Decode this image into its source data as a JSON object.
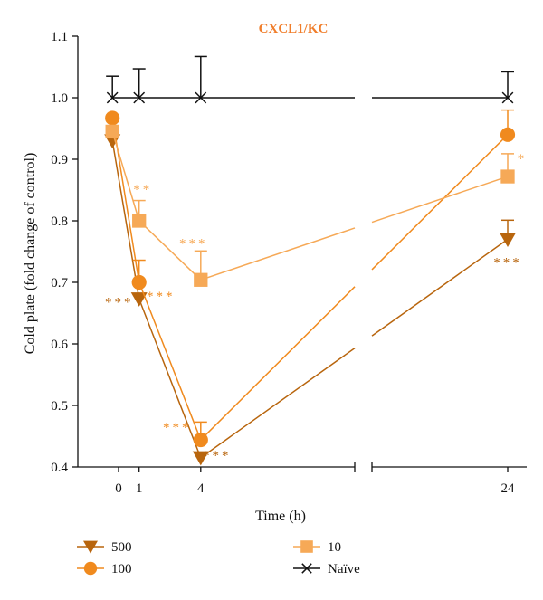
{
  "chart_data": {
    "type": "line",
    "title": "CXCL1/KC",
    "title_color": "#f07d2a",
    "xlabel": "Time (h)",
    "ylabel": "Cold plate (fold change of control)",
    "ylim": [
      0.4,
      1.1
    ],
    "yticks": [
      "0.4",
      "0.5",
      "0.6",
      "0.7",
      "0.8",
      "0.9",
      "1.0",
      "1.1"
    ],
    "xticks": [
      "0",
      "1",
      "4",
      "24"
    ],
    "x_axis_broken": true,
    "grid": false,
    "legend_position": "bottom",
    "series": [
      {
        "name": "500",
        "color": "#b8650d",
        "marker": "triangle-down",
        "x": [
          -0.3,
          1,
          4,
          24
        ],
        "y": [
          0.93,
          0.673,
          0.415,
          0.77
        ],
        "error": [
          0.0,
          0.0,
          0.0,
          0.031
        ],
        "annotations": [
          "",
          "***",
          "***",
          "***"
        ]
      },
      {
        "name": "100",
        "color": "#f08a1e",
        "marker": "circle",
        "x": [
          -0.3,
          1,
          4,
          24
        ],
        "y": [
          0.967,
          0.7,
          0.444,
          0.94
        ],
        "error": [
          0.0,
          0.036,
          0.029,
          0.04
        ],
        "annotations": [
          "",
          "***",
          "***",
          ""
        ]
      },
      {
        "name": "10",
        "color": "#f6a957",
        "marker": "square",
        "x": [
          -0.3,
          1,
          4,
          24
        ],
        "y": [
          0.945,
          0.8,
          0.704,
          0.872
        ],
        "error": [
          0.0,
          0.033,
          0.047,
          0.037
        ],
        "annotations": [
          "",
          "**",
          "***",
          "*"
        ]
      },
      {
        "name": "Naïve",
        "color": "#111111",
        "marker": "x",
        "x": [
          -0.3,
          1,
          4,
          24
        ],
        "y": [
          1.0,
          1.0,
          1.0,
          1.0
        ],
        "error": [
          0.035,
          0.047,
          0.067,
          0.042
        ],
        "annotations": [
          "",
          "",
          "",
          ""
        ]
      }
    ]
  }
}
